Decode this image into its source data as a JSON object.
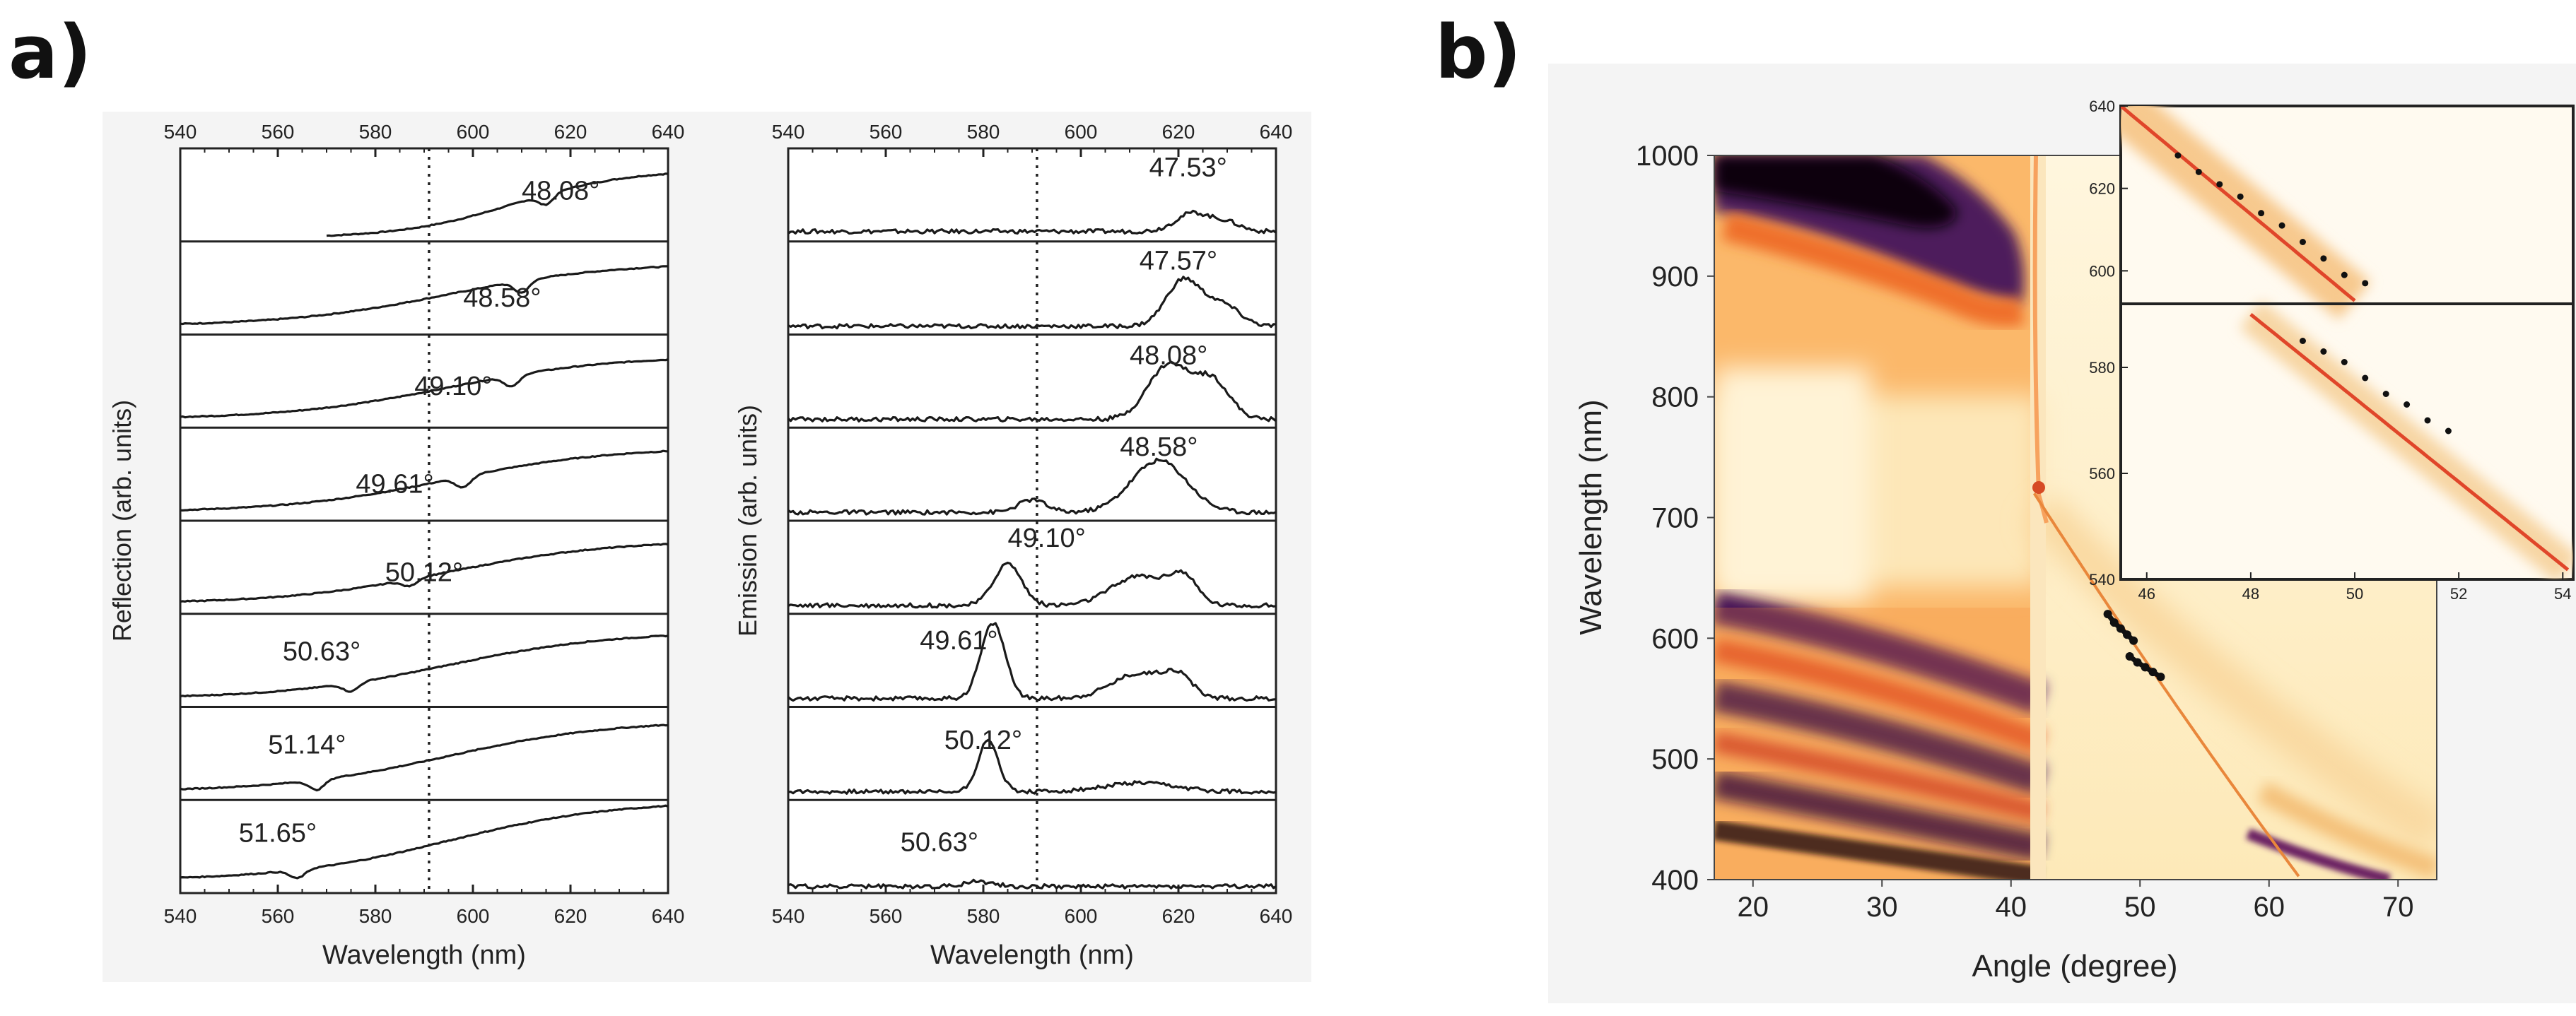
{
  "panel_labels": {
    "a": "a)",
    "b": "b)"
  },
  "chart_data": [
    {
      "type": "line",
      "panel": "a-left",
      "xlabel": "Wavelength (nm)",
      "ylabel": "Reflection (arb. units)",
      "xlim": [
        540,
        640
      ],
      "xticks": [
        "540",
        "560",
        "580",
        "600",
        "620",
        "640"
      ],
      "marker_line_nm": 591,
      "traces": [
        {
          "label": "48.08°",
          "start": 570,
          "dip": 615,
          "dipdepth": 0.12,
          "ymin": 0.04,
          "ymax": 0.86
        },
        {
          "label": "48.58°",
          "start": 540,
          "dip": 610,
          "dipdepth": 0.14,
          "ymin": 0.1,
          "ymax": 0.86
        },
        {
          "label": "49.10°",
          "start": 540,
          "dip": 608,
          "dipdepth": 0.13,
          "ymin": 0.1,
          "ymax": 0.86
        },
        {
          "label": "49.61°",
          "start": 540,
          "dip": 598,
          "dipdepth": 0.13,
          "ymin": 0.1,
          "ymax": 0.88
        },
        {
          "label": "50.12°",
          "start": 540,
          "dip": 587,
          "dipdepth": 0.08,
          "ymin": 0.12,
          "ymax": 0.88
        },
        {
          "label": "50.63°",
          "start": 540,
          "dip": 575,
          "dipdepth": 0.1,
          "ymin": 0.1,
          "ymax": 0.9
        },
        {
          "label": "51.14°",
          "start": 540,
          "dip": 568,
          "dipdepth": 0.12,
          "ymin": 0.1,
          "ymax": 0.95
        },
        {
          "label": "51.65°",
          "start": 540,
          "dip": 564,
          "dipdepth": 0.1,
          "ymin": 0.15,
          "ymax": 1.1
        }
      ]
    },
    {
      "type": "line",
      "panel": "a-right",
      "xlabel": "Wavelength (nm)",
      "ylabel": "Emission (arb. units)",
      "xlim": [
        540,
        640
      ],
      "xticks": [
        "540",
        "560",
        "580",
        "600",
        "620",
        "640"
      ],
      "marker_line_nm": 591,
      "traces": [
        {
          "label": "47.53°",
          "peaks": [
            [
              623,
              0.22,
              5
            ],
            [
              630,
              0.1,
              4
            ]
          ],
          "base": 0.12
        },
        {
          "label": "47.57°",
          "peaks": [
            [
              621,
              0.55,
              5
            ],
            [
              629,
              0.25,
              5
            ]
          ],
          "base": 0.1
        },
        {
          "label": "48.08°",
          "peaks": [
            [
              618,
              0.65,
              6
            ],
            [
              627,
              0.45,
              5
            ]
          ],
          "base": 0.1
        },
        {
          "label": "48.58°",
          "peaks": [
            [
              590,
              0.15,
              4
            ],
            [
              616,
              0.62,
              8
            ]
          ],
          "base": 0.1
        },
        {
          "label": "49.10°",
          "peaks": [
            [
              585,
              0.5,
              4
            ],
            [
              612,
              0.35,
              8
            ],
            [
              621,
              0.3,
              4
            ]
          ],
          "base": 0.1
        },
        {
          "label": "49.61°",
          "peaks": [
            [
              582,
              0.9,
              3.5
            ],
            [
              612,
              0.3,
              8
            ],
            [
              620,
              0.22,
              4
            ]
          ],
          "base": 0.1
        },
        {
          "label": "50.12°",
          "peaks": [
            [
              581,
              0.6,
              3
            ],
            [
              612,
              0.1,
              10
            ]
          ],
          "base": 0.1
        },
        {
          "label": "50.63°",
          "peaks": [
            [
              579,
              0.06,
              4
            ]
          ],
          "base": 0.08
        }
      ]
    },
    {
      "type": "heatmap",
      "panel": "b",
      "xlabel": "Angle (degree)",
      "ylabel": "Wavelength (nm)",
      "xlim": [
        17,
        73
      ],
      "ylim": [
        400,
        1000
      ],
      "xticks": [
        "20",
        "30",
        "40",
        "50",
        "60",
        "70"
      ],
      "yticks": [
        "400",
        "500",
        "600",
        "700",
        "800",
        "900",
        "1000"
      ],
      "critical_angle": 41.8,
      "data_points": {
        "upper": [
          [
            47.5,
            620
          ],
          [
            48.0,
            613
          ],
          [
            48.5,
            608
          ],
          [
            49.0,
            603
          ],
          [
            49.5,
            598
          ]
        ],
        "lower": [
          [
            49.2,
            585
          ],
          [
            49.8,
            580
          ],
          [
            50.4,
            576
          ],
          [
            51.0,
            572
          ],
          [
            51.6,
            568
          ]
        ]
      },
      "inset": {
        "xticks": [
          "46",
          "48",
          "50",
          "52",
          "54"
        ],
        "xlim": [
          45.5,
          54.2
        ],
        "upper_yticks": [
          "600",
          "620",
          "640"
        ],
        "upper_ylim": [
          592,
          640
        ],
        "lower_yticks": [
          "540",
          "560",
          "580"
        ],
        "lower_ylim": [
          540,
          592
        ],
        "upper_points": [
          [
            46.6,
            628
          ],
          [
            47.0,
            624
          ],
          [
            47.4,
            621
          ],
          [
            47.8,
            618
          ],
          [
            48.2,
            614
          ],
          [
            48.6,
            611
          ],
          [
            49.0,
            607
          ],
          [
            49.4,
            603
          ],
          [
            49.8,
            599
          ],
          [
            50.2,
            597
          ]
        ],
        "lower_points": [
          [
            49.0,
            585
          ],
          [
            49.4,
            583
          ],
          [
            49.8,
            581
          ],
          [
            50.2,
            578
          ],
          [
            50.6,
            575
          ],
          [
            51.0,
            573
          ],
          [
            51.4,
            570
          ],
          [
            51.8,
            568
          ]
        ]
      }
    }
  ]
}
